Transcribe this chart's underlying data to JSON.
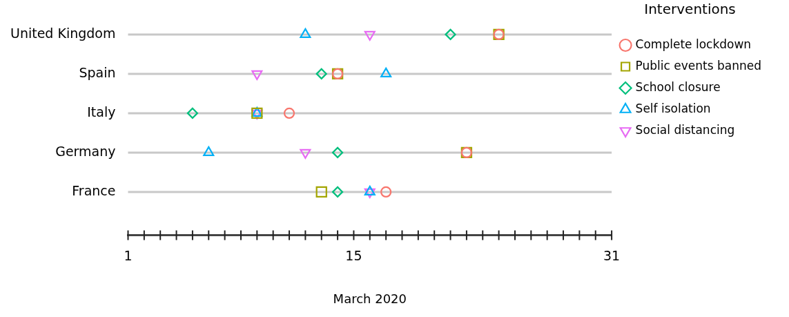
{
  "chart_data": {
    "type": "scatter",
    "orientation": "horizontal",
    "xlabel": "March 2020",
    "legend_title": "Interventions",
    "legend": "right",
    "grid": true,
    "categories": [
      "United Kingdom",
      "Spain",
      "Italy",
      "Germany",
      "France"
    ],
    "xlim": [
      1,
      31
    ],
    "xticks": [
      1,
      {
        "value": 2,
        "label": null
      },
      {
        "value": 3,
        "label": null
      },
      {
        "value": 4,
        "label": null
      },
      {
        "value": 5,
        "label": null
      },
      {
        "value": 6,
        "label": null
      },
      {
        "value": 7,
        "label": null
      },
      {
        "value": 8,
        "label": null
      },
      {
        "value": 9,
        "label": null
      },
      {
        "value": 10,
        "label": null
      },
      {
        "value": 11,
        "label": null
      },
      {
        "value": 12,
        "label": null
      },
      {
        "value": 13,
        "label": null
      },
      {
        "value": 14,
        "label": null
      },
      15,
      {
        "value": 16,
        "label": null
      },
      {
        "value": 17,
        "label": null
      },
      {
        "value": 18,
        "label": null
      },
      {
        "value": 19,
        "label": null
      },
      {
        "value": 20,
        "label": null
      },
      {
        "value": 21,
        "label": null
      },
      {
        "value": 22,
        "label": null
      },
      {
        "value": 23,
        "label": null
      },
      {
        "value": 24,
        "label": null
      },
      {
        "value": 25,
        "label": null
      },
      {
        "value": 26,
        "label": null
      },
      {
        "value": 27,
        "label": null
      },
      {
        "value": 28,
        "label": null
      },
      {
        "value": 29,
        "label": null
      },
      {
        "value": 30,
        "label": null
      },
      31
    ],
    "series": [
      {
        "name": "Complete lockdown",
        "color": "#f8766d",
        "marker": "circle",
        "values": [
          24,
          14,
          11,
          22,
          17
        ]
      },
      {
        "name": "Public events banned",
        "color": "#a3a500",
        "marker": "square",
        "values": [
          24,
          14,
          9,
          22,
          13
        ]
      },
      {
        "name": "School closure",
        "color": "#00bf7d",
        "marker": "diamond",
        "values": [
          21,
          13,
          5,
          14,
          14
        ]
      },
      {
        "name": "Self isolation",
        "color": "#00b0f6",
        "marker": "triangle",
        "values": [
          12,
          17,
          9,
          6,
          16
        ]
      },
      {
        "name": "Social distancing",
        "color": "#e76bf3",
        "marker": "triangle-down",
        "values": [
          16,
          9,
          9,
          12,
          16
        ]
      }
    ]
  }
}
